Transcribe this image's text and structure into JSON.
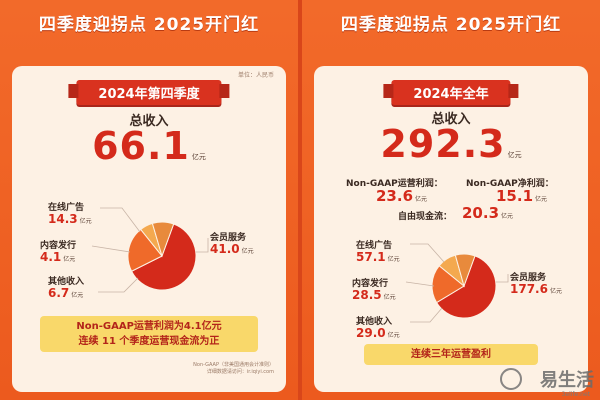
{
  "left": {
    "headline": "四季度迎拐点 2025开门红",
    "unit_note": "单位：人民币",
    "period": "2024年第四季度",
    "revenue_label": "总收入",
    "revenue_value": "66.1",
    "unit": "亿元",
    "segments": [
      {
        "label": "在线广告",
        "value": "14.3"
      },
      {
        "label": "内容发行",
        "value": "4.1"
      },
      {
        "label": "其他收入",
        "value": "6.7"
      },
      {
        "label": "会员服务",
        "value": "41.0"
      }
    ],
    "banner": [
      "Non-GAAP运营利润为4.1亿元",
      "连续 11 个季度运营现金流为正"
    ],
    "footnote": [
      "Non-GAAP（非美国通用会计准则）",
      "详细数据请访问：ir.iqiyi.com"
    ]
  },
  "right": {
    "headline": "四季度迎拐点 2025开门红",
    "period": "2024年全年",
    "revenue_label": "总收入",
    "revenue_value": "292.3",
    "unit": "亿元",
    "metrics": [
      {
        "label": "Non-GAAP运营利润：",
        "value": "23.6"
      },
      {
        "label": "Non-GAAP净利润：",
        "value": "15.1"
      },
      {
        "label": "自由现金流：",
        "value": "20.3"
      }
    ],
    "segments": [
      {
        "label": "在线广告",
        "value": "57.1"
      },
      {
        "label": "内容发行",
        "value": "28.5"
      },
      {
        "label": "其他收入",
        "value": "29.0"
      },
      {
        "label": "会员服务",
        "value": "177.6"
      }
    ],
    "banner": "连续三年运营盈利"
  },
  "chart_data": [
    {
      "type": "pie",
      "categories": [
        "会员服务",
        "在线广告",
        "内容发行",
        "其他收入"
      ],
      "values": [
        41.0,
        14.3,
        4.1,
        6.7
      ],
      "colors": [
        "#d42a1b",
        "#ef6a2a",
        "#f4a94f",
        "#e88a3c"
      ]
    },
    {
      "type": "pie",
      "categories": [
        "会员服务",
        "在线广告",
        "内容发行",
        "其他收入"
      ],
      "values": [
        177.6,
        57.1,
        28.5,
        29.0
      ],
      "colors": [
        "#d42a1b",
        "#ef6a2a",
        "#f4a94f",
        "#e88a3c"
      ]
    }
  ],
  "watermark": {
    "logo_text": "易生活",
    "url": "3elife.net"
  }
}
